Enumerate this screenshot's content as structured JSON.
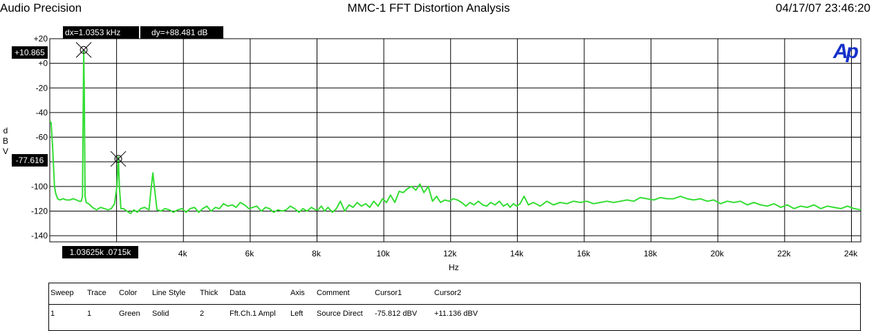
{
  "header": {
    "app_name": "Audio Precision",
    "title": "MMC-1 FFT Distortion Analysis",
    "timestamp": "04/17/07 23:46:20"
  },
  "readouts": {
    "dx": "dx=1.0353 kHz",
    "dy": "dy=+88.481 dB",
    "cursor1_y": "+10.865",
    "cursor2_y": "-77.616",
    "cursor_x": "1.03625k .0715k"
  },
  "logo_text": "Ap",
  "colors": {
    "trace": "#33dd33",
    "logo": "#1530c8",
    "grid": "#000000"
  },
  "chart_data": {
    "type": "line",
    "title": "MMC-1 FFT Distortion Analysis",
    "xlabel": "Hz",
    "ylabel": "d\nB\nV",
    "xlim": [
      20,
      24300
    ],
    "ylim": [
      -145,
      20
    ],
    "yticks": [
      {
        "value": 20,
        "label": "+20"
      },
      {
        "value": 0,
        "label": "+0"
      },
      {
        "value": -20,
        "label": "-20"
      },
      {
        "value": -40,
        "label": "-40"
      },
      {
        "value": -60,
        "label": "-60"
      },
      {
        "value": -100,
        "label": "-100"
      },
      {
        "value": -120,
        "label": "-120"
      },
      {
        "value": -140,
        "label": "-140"
      }
    ],
    "xticks": [
      {
        "value": 4000,
        "label": "4k"
      },
      {
        "value": 6000,
        "label": "6k"
      },
      {
        "value": 8000,
        "label": "8k"
      },
      {
        "value": 10000,
        "label": "10k"
      },
      {
        "value": 12000,
        "label": "12k"
      },
      {
        "value": 14000,
        "label": "14k"
      },
      {
        "value": 16000,
        "label": "16k"
      },
      {
        "value": 18000,
        "label": "18k"
      },
      {
        "value": 20000,
        "label": "20k"
      },
      {
        "value": 22000,
        "label": "22k"
      },
      {
        "value": 24000,
        "label": "24k"
      }
    ],
    "x_gridlines": [
      20,
      2020,
      4020,
      6020,
      8020,
      10020,
      12020,
      14020,
      16020,
      18020,
      20020,
      22020,
      24020
    ],
    "y_gridlines": [
      20,
      0,
      -20,
      -40,
      -60,
      -80,
      -100,
      -120,
      -140
    ],
    "grid": true,
    "cursors": [
      {
        "x": 1036,
        "y": 10.865
      },
      {
        "x": 2071,
        "y": -77.616
      }
    ],
    "series": [
      {
        "color": "#33dd33",
        "x": [
          20,
          60,
          110,
          160,
          200,
          260,
          320,
          420,
          520,
          620,
          720,
          820,
          900,
          960,
          1000,
          1020,
          1036,
          1052,
          1075,
          1110,
          1180,
          1300,
          1420,
          1540,
          1660,
          1760,
          1860,
          1960,
          2030,
          2071,
          2105,
          2150,
          2230,
          2330,
          2440,
          2540,
          2640,
          2740,
          2860,
          2990,
          3060,
          3107,
          3150,
          3230,
          3350,
          3470,
          3600,
          3720,
          3850,
          3980,
          4100,
          4220,
          4350,
          4480,
          4600,
          4720,
          4850,
          4980,
          5100,
          5220,
          5350,
          5480,
          5600,
          5720,
          5850,
          5980,
          6100,
          6220,
          6350,
          6480,
          6600,
          6720,
          6850,
          6980,
          7100,
          7220,
          7350,
          7480,
          7600,
          7720,
          7850,
          7980,
          8050,
          8150,
          8250,
          8350,
          8480,
          8600,
          8720,
          8850,
          8980,
          9100,
          9220,
          9350,
          9480,
          9600,
          9720,
          9850,
          9980,
          10100,
          10220,
          10350,
          10480,
          10600,
          10720,
          10850,
          10980,
          11100,
          11220,
          11350,
          11480,
          11600,
          11720,
          11850,
          11980,
          12100,
          12220,
          12350,
          12480,
          12600,
          12720,
          12850,
          12980,
          13100,
          13220,
          13350,
          13480,
          13600,
          13720,
          13800,
          13900,
          14000,
          14100,
          14220,
          14350,
          14500,
          14700,
          14900,
          15100,
          15300,
          15500,
          15700,
          15900,
          16100,
          16300,
          16500,
          16700,
          16900,
          17100,
          17300,
          17500,
          17700,
          17900,
          18100,
          18300,
          18500,
          18700,
          18900,
          19100,
          19300,
          19500,
          19700,
          19900,
          20100,
          20300,
          20500,
          20700,
          20900,
          21100,
          21300,
          21500,
          21700,
          21900,
          22100,
          22300,
          22500,
          22700,
          22900,
          23100,
          23300,
          23500,
          23700,
          23900,
          24100,
          24300
        ],
        "y": [
          -47,
          -48,
          -70,
          -100,
          -106,
          -110,
          -111,
          -110,
          -111,
          -111,
          -110,
          -111,
          -112,
          -112,
          -108,
          -40,
          10.5,
          -22,
          -108,
          -113,
          -114,
          -117,
          -119,
          -117,
          -118,
          -119,
          -118,
          -114,
          -100,
          -76,
          -100,
          -118,
          -118,
          -120,
          -122,
          -119,
          -121,
          -118,
          -117,
          -119,
          -100,
          -89,
          -100,
          -119,
          -120,
          -118,
          -119,
          -121,
          -119,
          -118,
          -121,
          -118,
          -117,
          -121,
          -118,
          -116,
          -120,
          -117,
          -118,
          -114,
          -116,
          -115,
          -117,
          -113,
          -115,
          -118,
          -117,
          -116,
          -120,
          -117,
          -118,
          -121,
          -119,
          -120,
          -119,
          -116,
          -118,
          -121,
          -118,
          -120,
          -117,
          -119,
          -119,
          -116,
          -120,
          -117,
          -121,
          -118,
          -112,
          -120,
          -115,
          -117,
          -113,
          -116,
          -114,
          -117,
          -112,
          -116,
          -110,
          -113,
          -107,
          -113,
          -104,
          -105,
          -102,
          -100,
          -103,
          -98,
          -105,
          -100,
          -112,
          -108,
          -113,
          -111,
          -112,
          -110,
          -111,
          -113,
          -116,
          -113,
          -115,
          -112,
          -115,
          -116,
          -113,
          -115,
          -112,
          -116,
          -114,
          -117,
          -114,
          -116,
          -114,
          -108,
          -115,
          -113,
          -116,
          -112,
          -115,
          -113,
          -114,
          -112,
          -113,
          -112,
          -114,
          -113,
          -112,
          -113,
          -112,
          -111,
          -112,
          -109,
          -110,
          -111,
          -109,
          -110,
          -110,
          -108,
          -110,
          -111,
          -110,
          -112,
          -111,
          -114,
          -112,
          -113,
          -112,
          -115,
          -113,
          -115,
          -116,
          -114,
          -117,
          -115,
          -118,
          -116,
          -117,
          -115,
          -118,
          -116,
          -117,
          -118,
          -116,
          -118,
          -119
        ]
      }
    ]
  },
  "legend": {
    "headers": [
      "Sweep",
      "Trace",
      "Color",
      "Line Style",
      "Thick",
      "Data",
      "Axis",
      "Comment",
      "Cursor1",
      "Cursor2"
    ],
    "row": [
      "1",
      "1",
      "Green",
      "Solid",
      "2",
      "Fft.Ch.1 Ampl",
      "Left",
      "Source Direct",
      "-75.812  dBV",
      "+11.136  dBV"
    ]
  }
}
